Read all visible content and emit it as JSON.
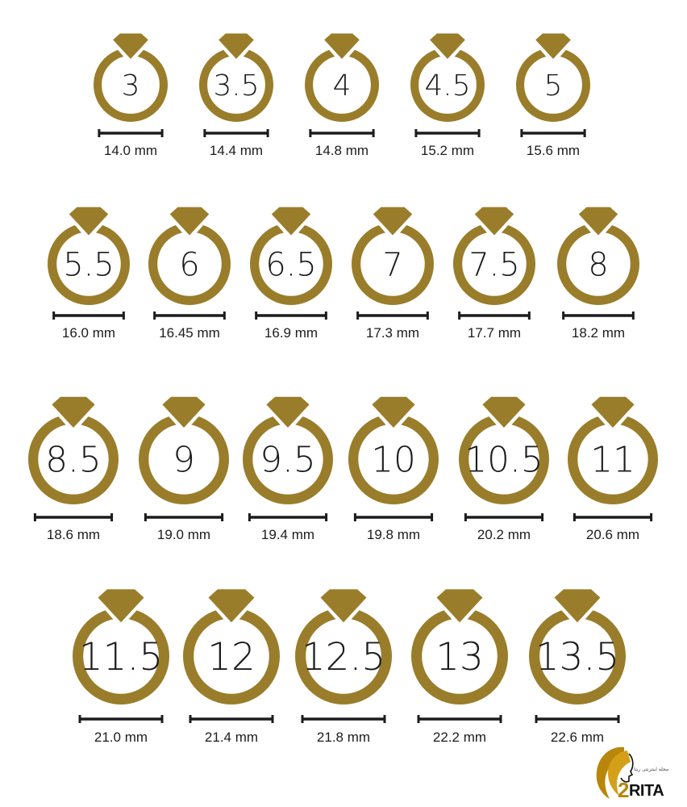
{
  "colors": {
    "gold": "#9a7d2a",
    "ink": "#1c1c1c",
    "brand_gold": "#b8860b"
  },
  "rows": [
    [
      {
        "size": "3",
        "mm": "14.0 mm"
      },
      {
        "size": "3.5",
        "mm": "14.4 mm"
      },
      {
        "size": "4",
        "mm": "14.8 mm"
      },
      {
        "size": "4.5",
        "mm": "15.2 mm"
      },
      {
        "size": "5",
        "mm": "15.6 mm"
      }
    ],
    [
      {
        "size": "5.5",
        "mm": "16.0 mm"
      },
      {
        "size": "6",
        "mm": "16.45 mm"
      },
      {
        "size": "6.5",
        "mm": "16.9 mm"
      },
      {
        "size": "7",
        "mm": "17.3 mm"
      },
      {
        "size": "7.5",
        "mm": "17.7 mm"
      },
      {
        "size": "8",
        "mm": "18.2 mm"
      }
    ],
    [
      {
        "size": "8.5",
        "mm": "18.6 mm"
      },
      {
        "size": "9",
        "mm": "19.0 mm"
      },
      {
        "size": "9.5",
        "mm": "19.4 mm"
      },
      {
        "size": "10",
        "mm": "19.8 mm"
      },
      {
        "size": "10.5",
        "mm": "20.2 mm"
      },
      {
        "size": "11",
        "mm": "20.6 mm"
      }
    ],
    [
      {
        "size": "11.5",
        "mm": "21.0 mm"
      },
      {
        "size": "12",
        "mm": "21.4 mm"
      },
      {
        "size": "12.5",
        "mm": "21.8 mm"
      },
      {
        "size": "13",
        "mm": "22.2 mm"
      },
      {
        "size": "13.5",
        "mm": "22.6 mm"
      }
    ]
  ],
  "logo": {
    "brand_number": "2",
    "brand_text": "RITA",
    "tagline": "مجله اینترنتی ریتا"
  }
}
